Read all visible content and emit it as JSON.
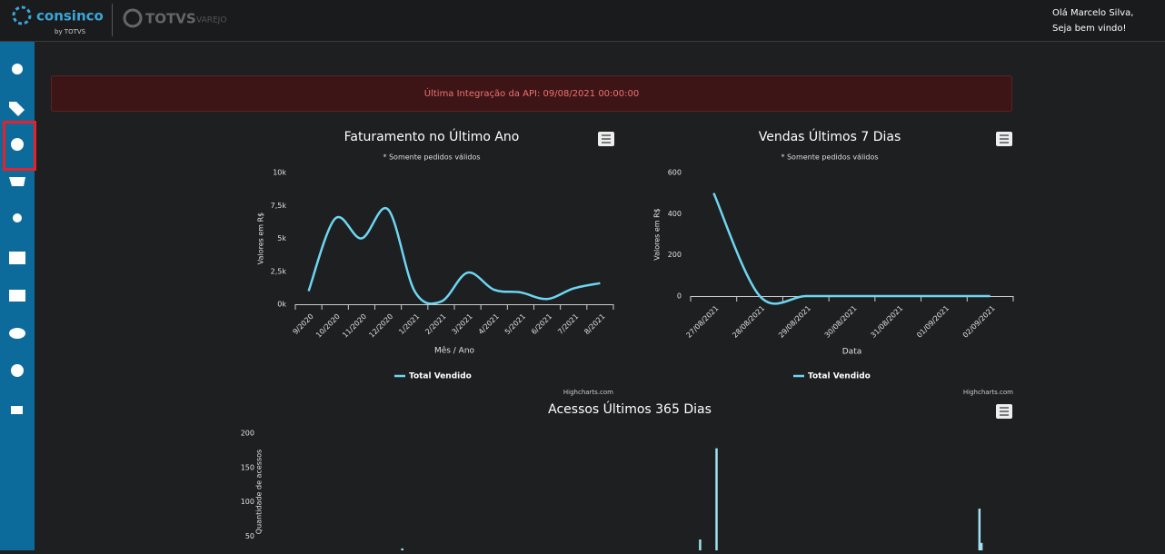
{
  "header": {
    "brand": "consinco",
    "brand_by": "by TOTVS",
    "partner": "TOTVS",
    "partner_sub": "VAREJO",
    "greeting": "Olá Marcelo Silva,",
    "welcome": "Seja bem vindo!"
  },
  "alert": "Última Integração da API: 09/08/2021 00:00:00",
  "chart_data": [
    {
      "type": "line",
      "title": "Faturamento no Último Ano",
      "subtitle": "* Somente pedidos válidos",
      "y_label": "Valores em R$",
      "x_label": "Mês / Ano",
      "categories": [
        "9/2020",
        "10/2020",
        "11/2020",
        "12/2020",
        "1/2021",
        "2/2021",
        "3/2021",
        "4/2021",
        "5/2021",
        "6/2021",
        "7/2021",
        "8/2021"
      ],
      "series": [
        {
          "name": "Total Vendido",
          "color": "#6dd6f2",
          "values": [
            1000,
            6500,
            5000,
            7200,
            1000,
            200,
            2400,
            1100,
            900,
            400,
            1200,
            1600
          ]
        }
      ],
      "ylim": [
        0,
        10000
      ],
      "yticks": [
        {
          "value": 0,
          "label": "0k"
        },
        {
          "value": 2500,
          "label": "2,5k"
        },
        {
          "value": 5000,
          "label": "5k"
        },
        {
          "value": 7500,
          "label": "7,5k"
        },
        {
          "value": 10000,
          "label": "10k"
        }
      ],
      "grid": false,
      "credits": "Highcharts.com"
    },
    {
      "type": "line",
      "title": "Vendas Últimos 7 Dias",
      "subtitle": "* Somente pedidos válidos",
      "y_label": "Valores em R$",
      "x_label": "Data",
      "categories": [
        "27/08/2021",
        "28/08/2021",
        "29/08/2021",
        "30/08/2021",
        "31/08/2021",
        "01/09/2021",
        "02/09/2021"
      ],
      "series": [
        {
          "name": "Total Vendido",
          "color": "#6dd6f2",
          "values": [
            500,
            0,
            0,
            0,
            0,
            0,
            0
          ]
        }
      ],
      "ylim": [
        0,
        600
      ],
      "yticks": [
        0,
        200,
        400,
        600
      ],
      "grid": false,
      "credits": "Highcharts.com"
    },
    {
      "type": "column",
      "title": "Acessos Últimos 365 Dias",
      "y_label": "Quantidade de acessos",
      "x": [
        67,
        212,
        220,
        348,
        349
      ],
      "xlim": [
        0,
        365
      ],
      "series": [
        {
          "color": "#9fe3f0",
          "values": [
            32,
            45,
            178,
            90,
            40
          ]
        }
      ],
      "ylim": [
        0,
        200
      ],
      "yticks": [
        50,
        100,
        150,
        200
      ],
      "grid": false
    }
  ]
}
